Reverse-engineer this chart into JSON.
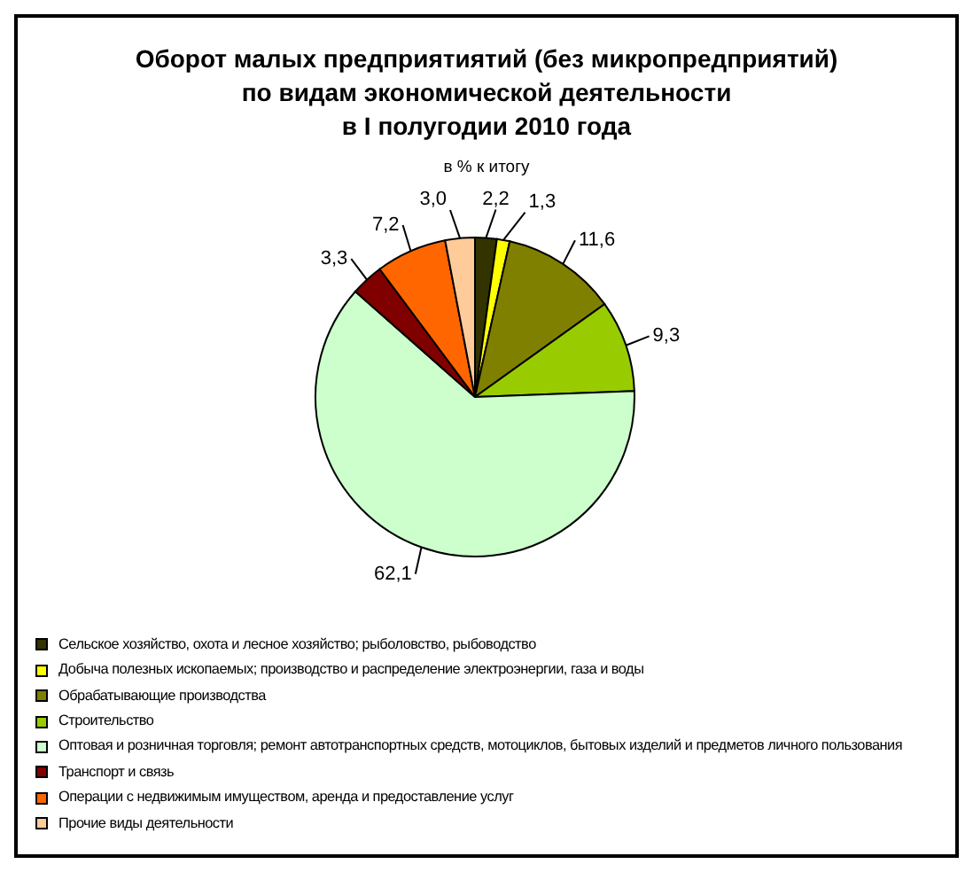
{
  "chart_data": {
    "type": "pie",
    "title": "Оборот малых предприятиятий (без микропредприятий)\nпо видам экономической деятельности\nв I полугодии 2010 года",
    "subtitle": "в % к итогу",
    "categories": [
      "Сельское хозяйство, охота и лесное хозяйство; рыболовство, рыбоводство",
      "Добыча полезных ископаемых; производство и распределение электроэнергии, газа и воды",
      "Обрабатывающие производства",
      "Строительство",
      "Оптовая и розничная торговля; ремонт автотранспортных средств, мотоциклов, бытовых изделий и предметов личного пользования",
      "Транспорт и связь",
      "Операции с недвижимым имуществом, аренда и предоставление услуг",
      "Прочие виды деятельности"
    ],
    "values": [
      2.2,
      1.3,
      11.6,
      9.3,
      62.1,
      3.3,
      7.2,
      3.0
    ],
    "value_labels": [
      "2,2",
      "1,3",
      "11,6",
      "9,3",
      "62,1",
      "3,3",
      "7,2",
      "3,0"
    ],
    "colors": [
      "#333300",
      "#ffff00",
      "#808000",
      "#99cc00",
      "#ccffcc",
      "#800000",
      "#ff6600",
      "#ffcc99"
    ],
    "legend": "bottom"
  }
}
